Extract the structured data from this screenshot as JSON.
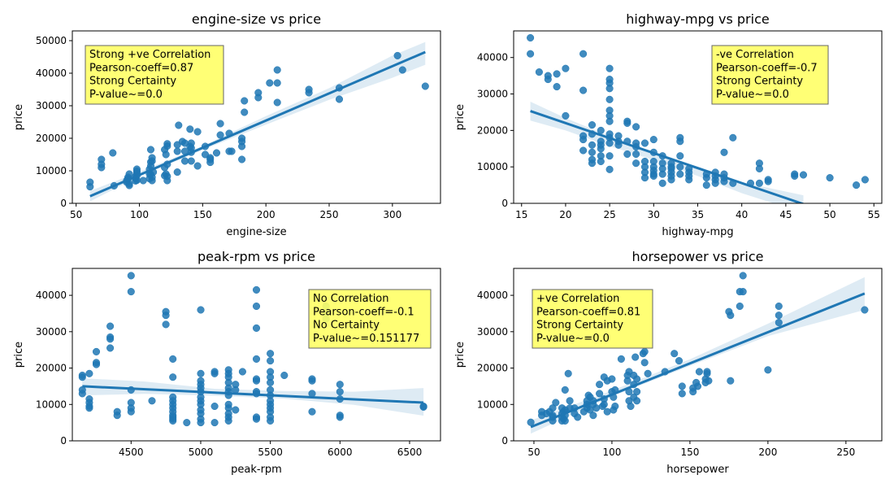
{
  "chart_data": [
    {
      "type": "scatter",
      "title": "engine-size vs price",
      "xlabel": "engine-size",
      "ylabel": "price",
      "xlim": [
        47,
        338
      ],
      "ylim": [
        0,
        53000
      ],
      "xticks": [
        50,
        100,
        150,
        200,
        250,
        300
      ],
      "yticks": [
        0,
        10000,
        20000,
        30000,
        40000,
        50000
      ],
      "annotation": [
        "Strong +ve Correlation",
        "Pearson-coeff=0.87",
        "Strong Certainty",
        "P-value~=0.0"
      ],
      "regression": {
        "x": [
          61,
          326
        ],
        "y": [
          2200,
          46500
        ]
      },
      "band": {
        "x": [
          61,
          100,
          150,
          200,
          250,
          300,
          326
        ],
        "lower": [
          600,
          8300,
          16400,
          24200,
          31800,
          38600,
          42600
        ],
        "upper": [
          3800,
          9700,
          17600,
          26800,
          35400,
          45400,
          49600
        ]
      },
      "x": [
        61,
        61,
        70,
        70,
        70,
        79,
        80,
        90,
        90,
        91,
        91,
        92,
        92,
        92,
        97,
        97,
        97,
        98,
        98,
        98,
        98,
        98,
        103,
        108,
        108,
        108,
        109,
        109,
        109,
        109,
        110,
        110,
        110,
        110,
        111,
        120,
        120,
        120,
        121,
        121,
        122,
        122,
        122,
        122,
        122,
        130,
        130,
        130,
        131,
        134,
        136,
        136,
        136,
        140,
        140,
        141,
        141,
        141,
        141,
        146,
        146,
        152,
        152,
        156,
        156,
        156,
        161,
        164,
        164,
        171,
        171,
        173,
        181,
        181,
        181,
        181,
        183,
        183,
        194,
        194,
        203,
        209,
        209,
        209,
        234,
        234,
        258,
        258,
        304,
        308,
        326
      ],
      "y": [
        5100,
        6500,
        11000,
        12000,
        13500,
        15500,
        5400,
        6500,
        7000,
        7500,
        8000,
        5500,
        6000,
        9000,
        6900,
        7600,
        8200,
        7100,
        8500,
        9300,
        9900,
        10500,
        7000,
        7600,
        9000,
        10500,
        8900,
        11500,
        12700,
        16500,
        7000,
        8000,
        13000,
        14000,
        9600,
        8500,
        11000,
        16500,
        9000,
        15000,
        7000,
        8300,
        12000,
        18300,
        17600,
        9600,
        16000,
        18000,
        24000,
        19000,
        13000,
        16000,
        18500,
        17500,
        22800,
        13000,
        18500,
        17000,
        15700,
        22000,
        11500,
        15000,
        17500,
        14000,
        13500,
        12600,
        15500,
        21000,
        24500,
        16000,
        21500,
        16000,
        13500,
        17500,
        19000,
        20000,
        28000,
        31500,
        32500,
        34000,
        37000,
        31000,
        37000,
        41000,
        34000,
        35000,
        32000,
        35500,
        45400,
        41000,
        36000
      ]
    },
    {
      "type": "scatter",
      "title": "highway-mpg vs price",
      "xlabel": "highway-mpg",
      "ylabel": "price",
      "xlim": [
        14.1,
        55.9
      ],
      "ylim": [
        0,
        47300
      ],
      "xticks": [
        15,
        20,
        25,
        30,
        35,
        40,
        45,
        50,
        55
      ],
      "yticks": [
        0,
        10000,
        20000,
        30000,
        40000
      ],
      "annotation": [
        "-ve Correlation",
        "Pearson-coeff=-0.7",
        "Strong Certainty",
        "P-value~=0.0"
      ],
      "regression": {
        "x": [
          16,
          47
        ],
        "y": [
          25300,
          -200
        ]
      },
      "band": {
        "x": [
          16,
          20,
          25,
          30,
          35,
          40,
          47
        ],
        "lower": [
          22700,
          20000,
          15700,
          11900,
          7500,
          2800,
          -2600
        ],
        "upper": [
          27900,
          23400,
          18400,
          13700,
          9700,
          5800,
          2200
        ]
      },
      "x": [
        16,
        16,
        17,
        18,
        18,
        19,
        19,
        20,
        20,
        22,
        22,
        22,
        22,
        22,
        23,
        23,
        23,
        23,
        23,
        23,
        24,
        24,
        24,
        24,
        24,
        24,
        25,
        25,
        25,
        25,
        25,
        25,
        25,
        25,
        25,
        25,
        25,
        25,
        25,
        26,
        26,
        26,
        27,
        27,
        27,
        27,
        28,
        28,
        28,
        28,
        28,
        29,
        29,
        29,
        29,
        29,
        30,
        30,
        30,
        30,
        30,
        30,
        30,
        31,
        31,
        31,
        31,
        31,
        32,
        32,
        32,
        32,
        32,
        32,
        33,
        33,
        33,
        33,
        33,
        34,
        34,
        34,
        34,
        36,
        36,
        36,
        37,
        37,
        37,
        37,
        38,
        38,
        38,
        38,
        39,
        39,
        41,
        42,
        42,
        42,
        43,
        43,
        46,
        46,
        47,
        50,
        53,
        54
      ],
      "y": [
        45400,
        41000,
        36000,
        35000,
        34000,
        32000,
        35500,
        37000,
        24000,
        41000,
        31000,
        18500,
        17500,
        14500,
        21500,
        19000,
        16000,
        12000,
        11000,
        14000,
        20000,
        17000,
        16000,
        15000,
        13000,
        11500,
        37000,
        34000,
        33000,
        31500,
        28500,
        25500,
        24000,
        22500,
        19000,
        18000,
        16500,
        13000,
        9300,
        18500,
        17000,
        16000,
        22500,
        22000,
        17000,
        13500,
        21000,
        16500,
        15500,
        13500,
        11000,
        16500,
        11500,
        10000,
        8500,
        7000,
        17500,
        14000,
        11500,
        10000,
        9000,
        8000,
        7500,
        13000,
        11000,
        9500,
        8000,
        5500,
        11000,
        10000,
        9500,
        8500,
        7500,
        6500,
        18000,
        17000,
        13000,
        10000,
        8000,
        9500,
        8500,
        7500,
        6500,
        8000,
        7000,
        5000,
        8500,
        7500,
        6500,
        5500,
        14000,
        8000,
        7000,
        6000,
        18000,
        5500,
        5500,
        11000,
        9500,
        5500,
        6500,
        6000,
        8000,
        7500,
        7800,
        7000,
        5000,
        6500
      ]
    },
    {
      "type": "scatter",
      "title": "peak-rpm vs price",
      "xlabel": "peak-rpm",
      "ylabel": "price",
      "xlim": [
        4078,
        6722
      ],
      "ylim": [
        0,
        47400
      ],
      "xticks": [
        4500,
        5000,
        5500,
        6000,
        6500
      ],
      "yticks": [
        0,
        10000,
        20000,
        30000,
        40000
      ],
      "annotation": [
        "No Correlation",
        "Pearson-coeff=-0.1",
        "No Certainty",
        "P-value~=0.151177"
      ],
      "regression": {
        "x": [
          4150,
          6600
        ],
        "y": [
          15000,
          10500
        ]
      },
      "band": {
        "x": [
          4150,
          4600,
          5100,
          5600,
          6100,
          6600
        ],
        "lower": [
          12500,
          12900,
          12400,
          11600,
          9900,
          6900
        ],
        "upper": [
          17200,
          16300,
          14300,
          13700,
          13500,
          14500
        ]
      },
      "x": [
        4150,
        4150,
        4150,
        4150,
        4200,
        4200,
        4200,
        4200,
        4200,
        4250,
        4250,
        4250,
        4350,
        4350,
        4350,
        4350,
        4400,
        4400,
        4500,
        4500,
        4500,
        4500,
        4500,
        4500,
        4650,
        4750,
        4750,
        4750,
        4800,
        4800,
        4800,
        4800,
        4800,
        4800,
        4800,
        4800,
        4800,
        4800,
        4800,
        4900,
        5000,
        5000,
        5000,
        5000,
        5000,
        5000,
        5000,
        5000,
        5000,
        5000,
        5000,
        5000,
        5000,
        5100,
        5100,
        5100,
        5100,
        5200,
        5200,
        5200,
        5200,
        5200,
        5200,
        5200,
        5200,
        5200,
        5200,
        5200,
        5200,
        5250,
        5250,
        5250,
        5300,
        5400,
        5400,
        5400,
        5400,
        5400,
        5400,
        5400,
        5400,
        5400,
        5400,
        5500,
        5500,
        5500,
        5500,
        5500,
        5500,
        5500,
        5500,
        5500,
        5500,
        5500,
        5500,
        5500,
        5600,
        5800,
        5800,
        5800,
        5800,
        5900,
        5900,
        5900,
        6000,
        6000,
        6000,
        6000,
        6000,
        6600,
        6600
      ],
      "y": [
        18000,
        17500,
        14000,
        13000,
        18500,
        11500,
        10500,
        9500,
        9000,
        24500,
        21500,
        21000,
        31500,
        28500,
        28000,
        25500,
        8000,
        7000,
        45400,
        41000,
        14000,
        10500,
        9000,
        8000,
        11000,
        35500,
        34500,
        32000,
        22500,
        17500,
        12000,
        11000,
        10000,
        9000,
        8000,
        7000,
        6500,
        6000,
        5500,
        5000,
        36000,
        18500,
        16500,
        15500,
        14500,
        13500,
        12000,
        11000,
        10000,
        8500,
        7500,
        6000,
        5000,
        19000,
        18500,
        9500,
        5000,
        19500,
        18500,
        17500,
        16000,
        14500,
        13500,
        12500,
        10000,
        9000,
        7500,
        6500,
        5500,
        15500,
        14000,
        8500,
        19000,
        41500,
        37000,
        31000,
        22500,
        17000,
        16500,
        13500,
        13000,
        6500,
        6000,
        24000,
        22000,
        19000,
        17500,
        16000,
        14000,
        12500,
        11000,
        10000,
        9000,
        8000,
        6500,
        5500,
        18000,
        17000,
        16500,
        13000,
        8000,
        37000,
        35000,
        33500,
        15500,
        13500,
        11500,
        7000,
        6500,
        9500,
        9300
      ]
    },
    {
      "type": "scatter",
      "title": "horsepower vs price",
      "xlabel": "horsepower",
      "ylabel": "price",
      "xlim": [
        37,
        273
      ],
      "ylim": [
        0,
        47400
      ],
      "xticks": [
        50,
        100,
        150,
        200,
        250
      ],
      "yticks": [
        0,
        10000,
        20000,
        30000,
        40000
      ],
      "annotation": [
        "+ve Correlation",
        "Pearson-coeff=0.81",
        "Strong Certainty",
        "P-value~=0.0"
      ],
      "regression": {
        "x": [
          48,
          262
        ],
        "y": [
          3800,
          40500
        ]
      },
      "band": {
        "x": [
          48,
          100,
          150,
          200,
          262
        ],
        "lower": [
          2000,
          12200,
          20600,
          28800,
          36000
        ],
        "upper": [
          5600,
          13800,
          22400,
          32200,
          45000
        ]
      },
      "x": [
        48,
        55,
        55,
        58,
        60,
        62,
        62,
        62,
        62,
        64,
        68,
        68,
        68,
        68,
        69,
        69,
        70,
        70,
        70,
        70,
        72,
        73,
        73,
        76,
        76,
        78,
        82,
        84,
        84,
        84,
        85,
        86,
        86,
        88,
        88,
        88,
        90,
        92,
        92,
        94,
        95,
        95,
        95,
        97,
        97,
        100,
        100,
        101,
        101,
        102,
        102,
        106,
        110,
        110,
        111,
        111,
        111,
        112,
        114,
        114,
        114,
        115,
        116,
        116,
        116,
        120,
        121,
        121,
        123,
        134,
        140,
        143,
        145,
        145,
        152,
        152,
        154,
        155,
        156,
        160,
        160,
        161,
        161,
        162,
        175,
        176,
        176,
        182,
        182,
        184,
        184,
        200,
        207,
        207,
        207,
        262
      ],
      "y": [
        5100,
        8000,
        7000,
        7500,
        8000,
        5500,
        6500,
        7000,
        9000,
        10500,
        5500,
        6500,
        7500,
        9000,
        6000,
        8000,
        14000,
        8500,
        7000,
        5500,
        18500,
        11000,
        9000,
        7500,
        9000,
        6500,
        8000,
        10000,
        11000,
        9000,
        12500,
        8500,
        12000,
        10000,
        7000,
        11000,
        9000,
        13000,
        15500,
        9500,
        17500,
        11500,
        10000,
        16500,
        8000,
        17000,
        13500,
        12000,
        8500,
        9500,
        14000,
        22500,
        18000,
        16500,
        11000,
        19000,
        13500,
        9500,
        18000,
        15500,
        12000,
        23000,
        17000,
        13500,
        11000,
        24000,
        24500,
        21500,
        18500,
        19000,
        24000,
        22000,
        15000,
        13000,
        13500,
        14500,
        16000,
        15000,
        19000,
        16000,
        17000,
        18500,
        19000,
        16500,
        35500,
        34500,
        16500,
        37000,
        41000,
        41000,
        45400,
        19500,
        37000,
        34500,
        32500,
        36000
      ]
    }
  ]
}
